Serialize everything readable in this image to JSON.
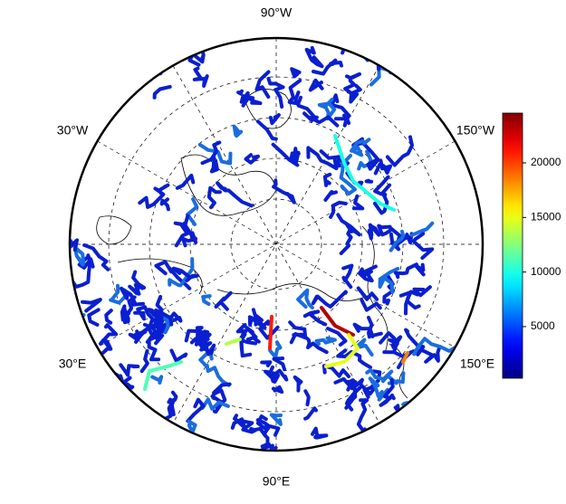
{
  "map": {
    "type": "map",
    "longitude_labels": [
      "90°W",
      "30°W",
      "150°W",
      "30°E",
      "150°E",
      "90°E"
    ],
    "colorbar": {
      "clim": [
        270,
        24560
      ],
      "ticks": [
        5000,
        10000,
        15000,
        20000
      ],
      "colormap": "jet"
    }
  }
}
